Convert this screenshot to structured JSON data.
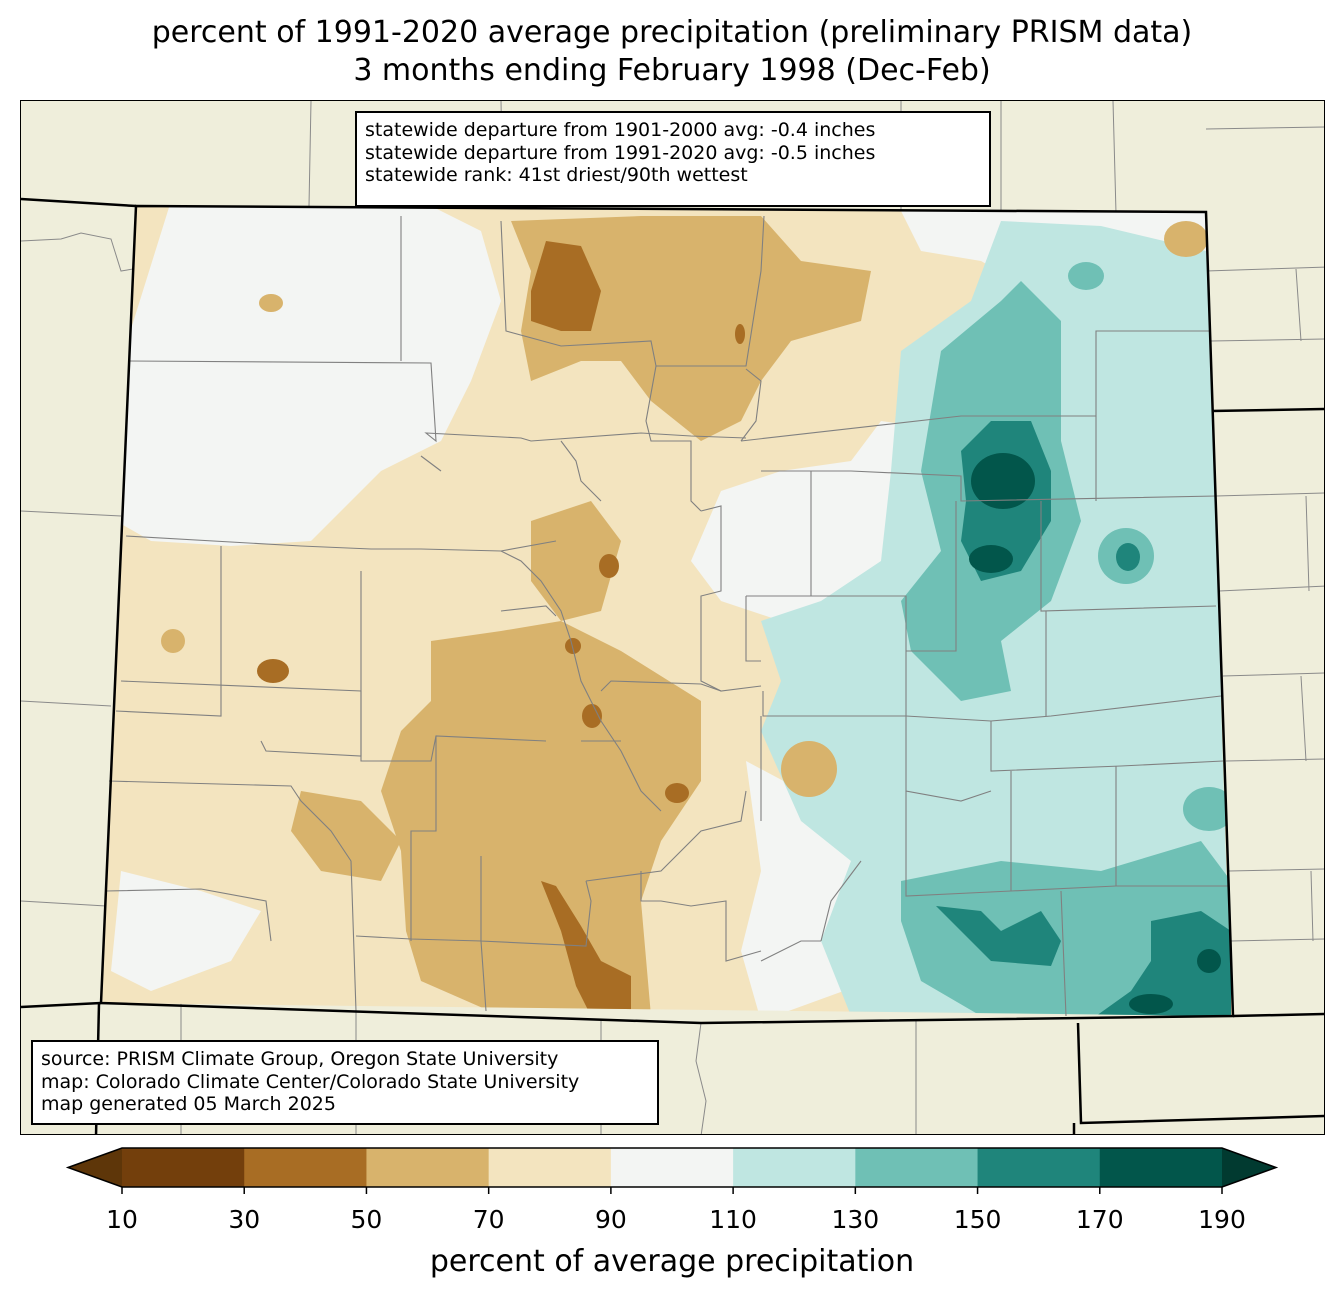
{
  "title": {
    "line1": "percent of 1991-2020 average precipitation (preliminary PRISM data)",
    "line2": "3 months ending February 1998 (Dec-Feb)"
  },
  "stats": {
    "line1": "statewide departure from 1901-2000 avg: -0.4 inches",
    "line2": "statewide departure from 1991-2020 avg: -0.5 inches",
    "line3": "statewide rank: 41st driest/90th wettest"
  },
  "source": {
    "line1": "source: PRISM Climate Group, Oregon State University",
    "line2": "map: Colorado Climate Center/Colorado State University",
    "line3": "map generated 05 March 2025"
  },
  "colorbar": {
    "label": "percent of average precipitation",
    "ticks": [
      "10",
      "30",
      "50",
      "70",
      "90",
      "110",
      "130",
      "150",
      "170",
      "190"
    ],
    "colors": [
      "#5e3609",
      "#733f0c",
      "#a86d24",
      "#d8b36c",
      "#f3e4bf",
      "#f3f5f3",
      "#bfe6e1",
      "#6fc0b5",
      "#1f857b",
      "#02564b",
      "#013a30"
    ]
  },
  "colors": {
    "background_land": "#efeedb",
    "county_lines": "#808080",
    "state_border": "#000000"
  }
}
